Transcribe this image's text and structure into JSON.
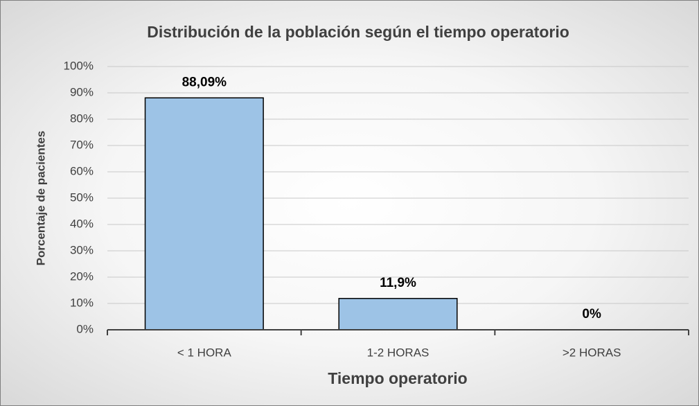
{
  "chart_data": {
    "type": "bar",
    "title": "Distribución de la población según el tiempo operatorio",
    "x_label": "Tiempo operatorio",
    "y_label": "Porcentaje de pacientes",
    "categories": [
      "< 1 HORA",
      "1-2 HORAS",
      ">2 HORAS"
    ],
    "values": [
      88.09,
      11.9,
      0
    ],
    "value_labels": [
      "88,09%",
      "11,9%",
      "0%"
    ],
    "color": "#9dc3e6",
    "ylim": [
      0,
      100
    ],
    "yticks": [
      {
        "value": 0,
        "label": "0%"
      },
      {
        "value": 10,
        "label": "10%"
      },
      {
        "value": 20,
        "label": "20%"
      },
      {
        "value": 30,
        "label": "30%"
      },
      {
        "value": 40,
        "label": "40%"
      },
      {
        "value": 50,
        "label": "50%"
      },
      {
        "value": 60,
        "label": "60%"
      },
      {
        "value": 70,
        "label": "70%"
      },
      {
        "value": 80,
        "label": "80%"
      },
      {
        "value": 90,
        "label": "90%"
      },
      {
        "value": 100,
        "label": "100%"
      }
    ],
    "grid": true
  }
}
